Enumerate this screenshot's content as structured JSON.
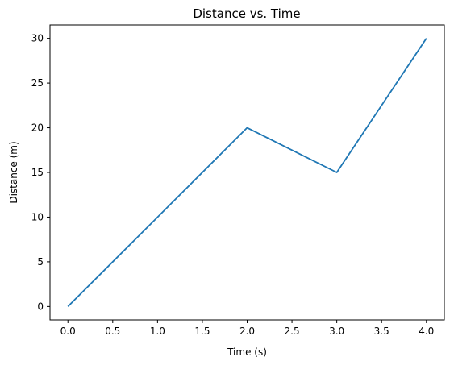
{
  "chart_data": {
    "type": "line",
    "title": "Distance vs. Time",
    "xlabel": "Time (s)",
    "ylabel": "Distance (m)",
    "xlim": [
      -0.2,
      4.2
    ],
    "ylim": [
      -1.5,
      31.5
    ],
    "xticks": [
      0.0,
      0.5,
      1.0,
      1.5,
      2.0,
      2.5,
      3.0,
      3.5,
      4.0
    ],
    "xtick_labels": [
      "0.0",
      "0.5",
      "1.0",
      "1.5",
      "2.0",
      "2.5",
      "3.0",
      "3.5",
      "4.0"
    ],
    "yticks": [
      0,
      5,
      10,
      15,
      20,
      25,
      30
    ],
    "ytick_labels": [
      "0",
      "5",
      "10",
      "15",
      "20",
      "25",
      "30"
    ],
    "grid": false,
    "legend": "none",
    "series": [
      {
        "x": [
          0,
          1,
          2,
          3,
          4
        ],
        "y": [
          0,
          10,
          20,
          15,
          30
        ],
        "color": "#1f77b4"
      }
    ]
  }
}
